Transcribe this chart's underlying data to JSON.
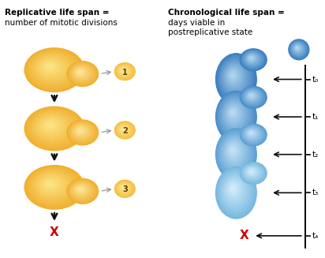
{
  "title_left_bold": "Replicative life span =",
  "title_left_normal": "number of mitotic divisions",
  "title_right_bold": "Chronological life span =",
  "title_right_normal": "days viable in\npostreplicative state",
  "bg_color": "#ffffff",
  "orange_outer": "#F0B030",
  "orange_inner": "#FDE88A",
  "orange_bud_outer": "#F0B030",
  "orange_bud_inner": "#FDEAA0",
  "small_bud_color": "#F5C040",
  "small_bud_light": "#FDEAA0",
  "arrow_gray": "#999999",
  "arrow_black": "#111111",
  "x_color": "#cc0000",
  "blue_dark": "#3A7EC0",
  "blue_mid": "#6AAAD8",
  "blue_light": "#B8DCF0",
  "blue_vlight": "#D8EEF8",
  "time_labels": [
    "t₀",
    "t₁",
    "t₂",
    "t₃",
    "t₄"
  ],
  "bud_numbers": [
    "1",
    "2",
    "3"
  ],
  "font_size_title": 7.5,
  "font_size_label": 7.5,
  "font_size_number": 7,
  "font_size_x": 11
}
